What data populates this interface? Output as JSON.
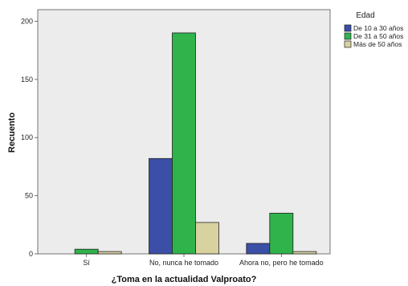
{
  "chart_data": {
    "type": "bar",
    "title": "",
    "xlabel": "¿Toma en la actualidad Valproato?",
    "ylabel": "Recuento",
    "ylim": [
      0,
      210
    ],
    "yticks": [
      0,
      50,
      100,
      150,
      200
    ],
    "grid": false,
    "legend_position": "top-right",
    "legend_title": "Edad",
    "categories": [
      "Sí",
      "No, nunca he tomado",
      "Ahora no, pero he tomado"
    ],
    "series": [
      {
        "name": "De 10 a 30 años",
        "color": "#3b4fa6",
        "values": [
          0,
          82,
          9
        ]
      },
      {
        "name": "De 31 a 50 años",
        "color": "#2fb34a",
        "values": [
          4,
          190,
          35
        ]
      },
      {
        "name": "Más de 50 años",
        "color": "#d8d2a0",
        "values": [
          2,
          27,
          2
        ]
      }
    ],
    "plot_background": "#ececec"
  }
}
